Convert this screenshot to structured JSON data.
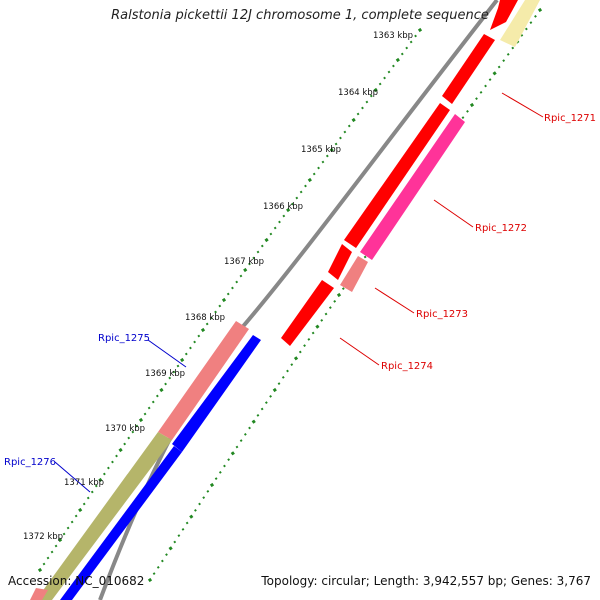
{
  "title": "Ralstonia pickettii 12J chromosome 1, complete sequence",
  "footer": {
    "accession": "Accession: NC_010682",
    "summary": "Topology: circular; Length: 3,942,557 bp; Genes: 3,767"
  },
  "ticks": [
    "1363 kbp",
    "1364 kbp",
    "1365 kbp",
    "1366 kbp",
    "1367 kbp",
    "1368 kbp",
    "1369 kbp",
    "1370 kbp",
    "1371 kbp",
    "1372 kbp"
  ],
  "genes": [
    {
      "label": "Rpic_1271",
      "strand": "forward",
      "color": "#dd0000"
    },
    {
      "label": "Rpic_1272",
      "strand": "forward",
      "color": "#dd0000"
    },
    {
      "label": "Rpic_1273",
      "strand": "forward",
      "color": "#dd0000"
    },
    {
      "label": "Rpic_1274",
      "strand": "forward",
      "color": "#dd0000"
    },
    {
      "label": "Rpic_1275",
      "strand": "reverse",
      "color": "#0000cc"
    },
    {
      "label": "Rpic_1276",
      "strand": "reverse",
      "color": "#0000cc"
    }
  ],
  "colors": {
    "forward_cds": "#ff0000",
    "reverse_cds": "#0000ff",
    "forward_feature": "#ff3399",
    "reverse_feature": "#f08080",
    "other_feature": "#f5ebaa",
    "olive_feature": "#b5b56a",
    "backbone": "#888888",
    "tick": "#228822"
  }
}
